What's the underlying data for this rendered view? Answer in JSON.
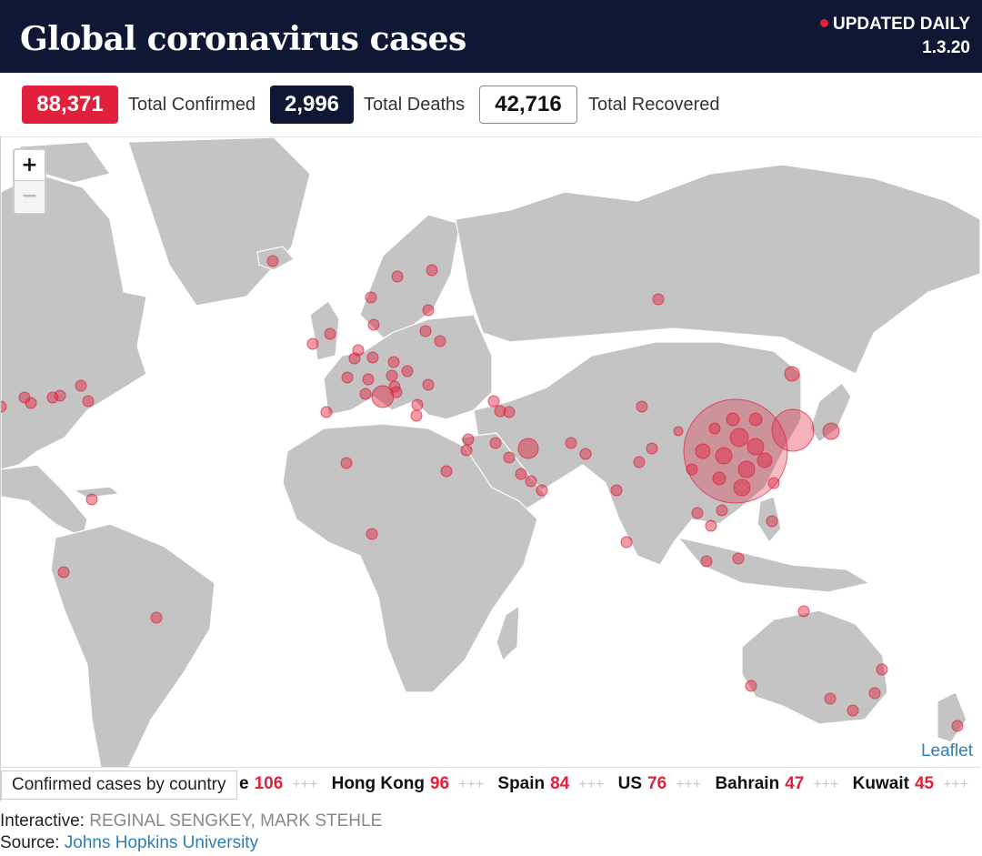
{
  "header": {
    "title": "Global coronavirus cases",
    "updated_label": "UPDATED DAILY",
    "updated_date": "1.3.20"
  },
  "stats": {
    "confirmed_value": "88,371",
    "confirmed_label": "Total Confirmed",
    "deaths_value": "2,996",
    "deaths_label": "Total Deaths",
    "recovered_value": "42,716",
    "recovered_label": "Total Recovered"
  },
  "map": {
    "zoom_in_label": "+",
    "zoom_out_label": "−",
    "attribution": "Leaflet",
    "land_color": "#c4c4c4",
    "marker_color": "#e1213b"
  },
  "ticker": {
    "label": "Confirmed cases by country",
    "separator": "+++",
    "items": [
      {
        "name": "e",
        "value": "106"
      },
      {
        "name": "Hong Kong",
        "value": "96"
      },
      {
        "name": "Spain",
        "value": "84"
      },
      {
        "name": "US",
        "value": "76"
      },
      {
        "name": "Bahrain",
        "value": "47"
      },
      {
        "name": "Kuwait",
        "value": "45"
      }
    ]
  },
  "credits": {
    "interactive_label": "Interactive:",
    "interactive_names": "REGINAL SENGKEY, MARK STEHLE",
    "source_label": "Source:",
    "source_name": "Johns Hopkins University"
  },
  "colors": {
    "header_bg": "#0e1733",
    "accent_red": "#e1213b",
    "link_blue": "#2c7fb8"
  }
}
